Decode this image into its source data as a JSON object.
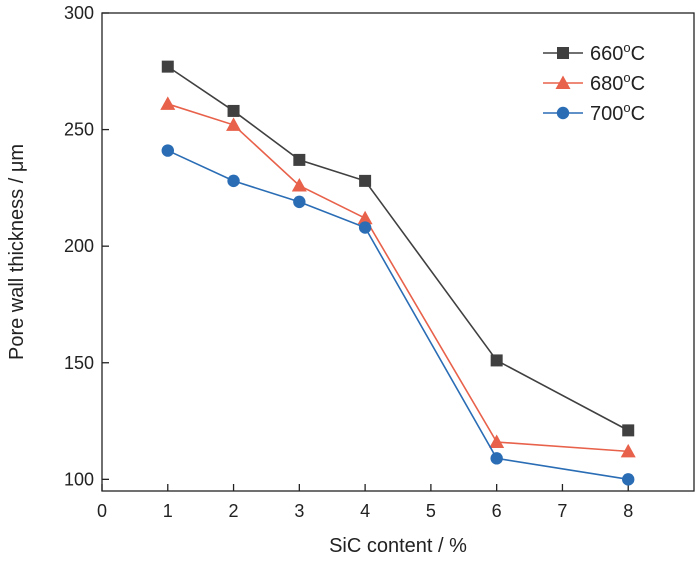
{
  "chart_data": {
    "type": "line",
    "xlabel": "SiC content / %",
    "ylabel": "Pore wall thickness / μm",
    "xlim": [
      0,
      9
    ],
    "ylim": [
      95,
      300
    ],
    "xticks": [
      0,
      1,
      2,
      3,
      4,
      5,
      6,
      7,
      8
    ],
    "yticks": [
      100,
      150,
      200,
      250,
      300
    ],
    "x": [
      1,
      2,
      3,
      4,
      6,
      8
    ],
    "grid": false,
    "legend_position": "top-right",
    "series": [
      {
        "name": "660",
        "unit": "oC",
        "color": "#404040",
        "marker": "square",
        "values": [
          277,
          258,
          237,
          228,
          151,
          121
        ]
      },
      {
        "name": "680",
        "unit": "oC",
        "color": "#e8614a",
        "marker": "triangle",
        "values": [
          261,
          252,
          226,
          212,
          116,
          112
        ]
      },
      {
        "name": "700",
        "unit": "oC",
        "color": "#2a6db5",
        "marker": "circle",
        "values": [
          241,
          228,
          219,
          208,
          109,
          100
        ]
      }
    ]
  }
}
